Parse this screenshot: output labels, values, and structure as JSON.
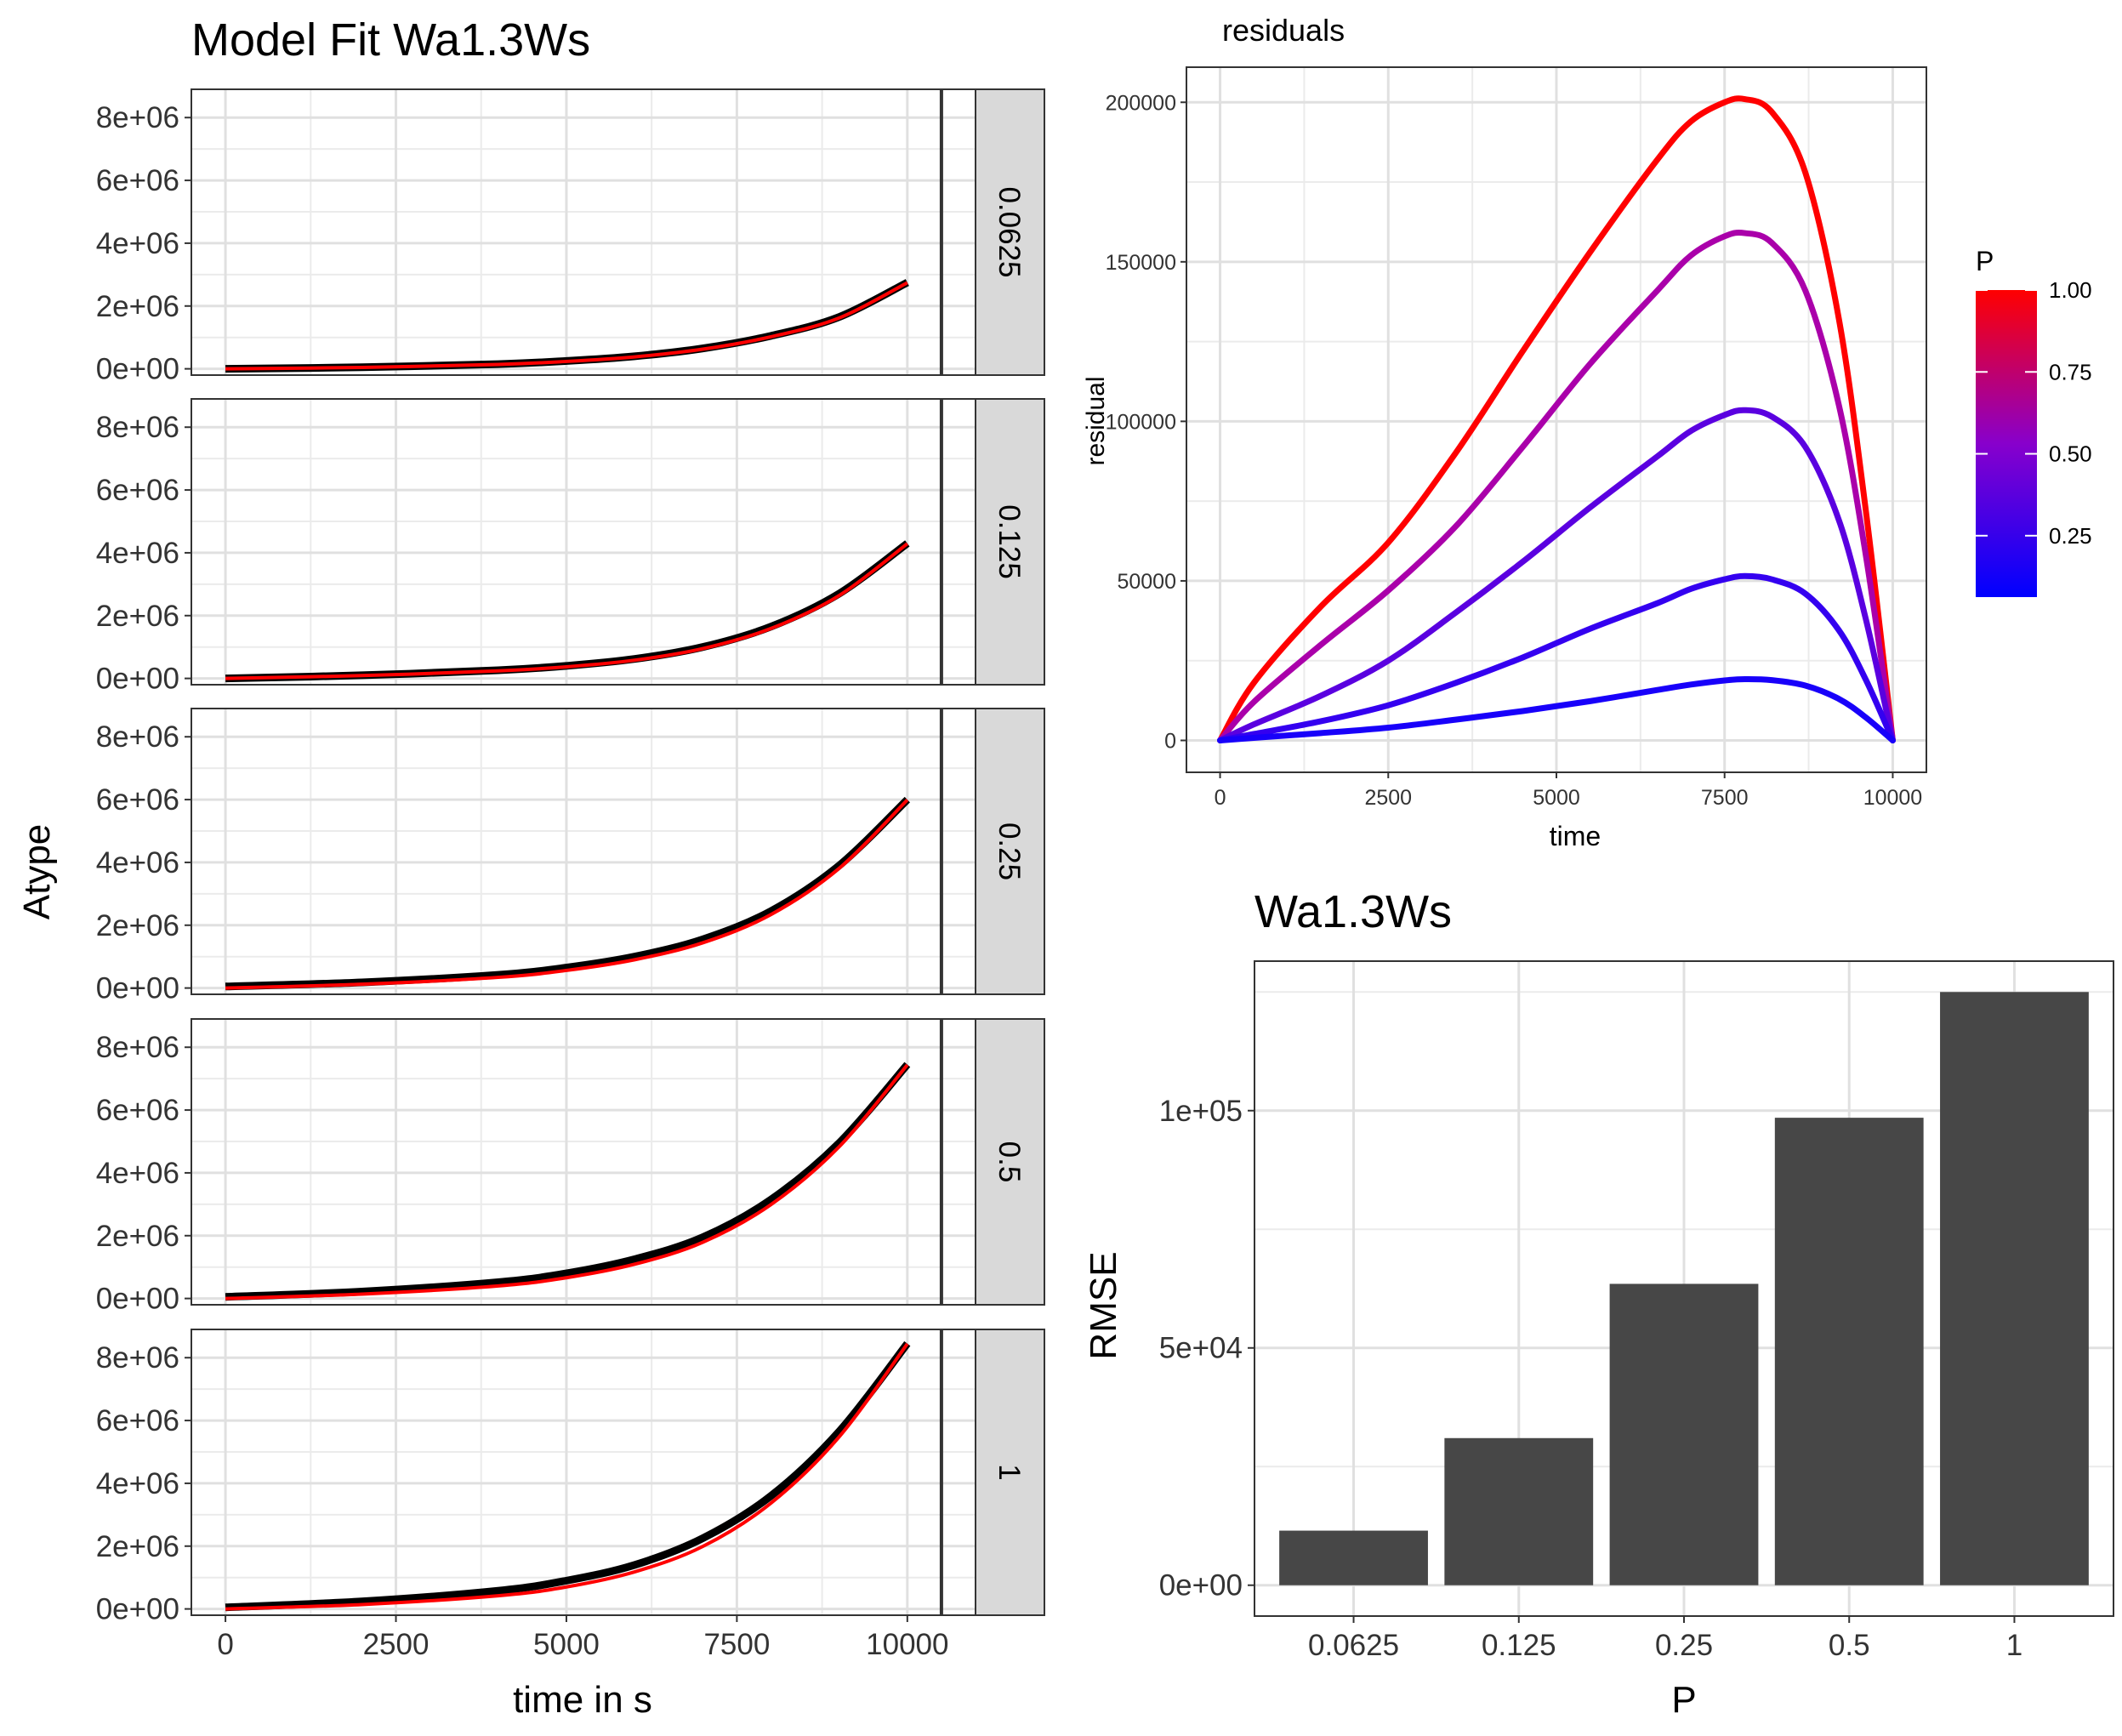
{
  "chart_data": [
    {
      "type": "line",
      "title": "Model Fit Wa1.3Ws",
      "xlabel": "time in s",
      "ylabel": "Atype",
      "xlim": [
        -500,
        11000
      ],
      "ylim": [
        -200000,
        8900000
      ],
      "x_ticks": [
        0,
        2500,
        5000,
        7500,
        10000
      ],
      "y_tick_values": [
        0,
        2000000,
        4000000,
        6000000,
        8000000
      ],
      "y_tick_labels": [
        "0e+00",
        "2e+06",
        "4e+06",
        "6e+06",
        "8e+06"
      ],
      "grid": true,
      "x_range": [
        0,
        10000
      ],
      "facet_note_vline_x": 10500,
      "panels": [
        {
          "facet_label": "0.0625",
          "series": [
            {
              "color": "#000000",
              "x": [
                0,
                2000,
                4000,
                5000,
                6000,
                7000,
                8000,
                9000,
                10000
              ],
              "values": [
                0,
                50000,
                150000,
                250000,
                400000,
                650000,
                1050000,
                1650000,
                2750000
              ]
            },
            {
              "color": "#ff0000",
              "x": [
                0,
                2000,
                4000,
                5000,
                6000,
                7000,
                8000,
                9000,
                10000
              ],
              "values": [
                0,
                45000,
                140000,
                235000,
                380000,
                625000,
                1020000,
                1620000,
                2740000
              ]
            }
          ]
        },
        {
          "facet_label": "0.125",
          "series": [
            {
              "color": "#000000",
              "x": [
                0,
                2000,
                4000,
                5000,
                6000,
                7000,
                8000,
                9000,
                10000
              ],
              "values": [
                0,
                100000,
                260000,
                400000,
                620000,
                1000000,
                1650000,
                2700000,
                4300000
              ]
            },
            {
              "color": "#ff0000",
              "x": [
                0,
                2000,
                4000,
                5000,
                6000,
                7000,
                8000,
                9000,
                10000
              ],
              "values": [
                0,
                90000,
                240000,
                370000,
                580000,
                950000,
                1590000,
                2640000,
                4290000
              ]
            }
          ]
        },
        {
          "facet_label": "0.25",
          "series": [
            {
              "color": "#000000",
              "x": [
                0,
                2000,
                4000,
                5000,
                6000,
                7000,
                8000,
                9000,
                10000
              ],
              "values": [
                50000,
                180000,
                420000,
                650000,
                1000000,
                1550000,
                2450000,
                3900000,
                6000000
              ]
            },
            {
              "color": "#ff0000",
              "x": [
                0,
                2000,
                4000,
                5000,
                6000,
                7000,
                8000,
                9000,
                10000
              ],
              "values": [
                0,
                120000,
                340000,
                560000,
                900000,
                1440000,
                2340000,
                3810000,
                5990000
              ]
            }
          ]
        },
        {
          "facet_label": "0.5",
          "series": [
            {
              "color": "#000000",
              "x": [
                0,
                2000,
                4000,
                5000,
                6000,
                7000,
                8000,
                9000,
                10000
              ],
              "values": [
                50000,
                220000,
                520000,
                800000,
                1250000,
                1950000,
                3150000,
                4950000,
                7450000
              ]
            },
            {
              "color": "#ff0000",
              "x": [
                0,
                2000,
                4000,
                5000,
                6000,
                7000,
                8000,
                9000,
                10000
              ],
              "values": [
                0,
                140000,
                400000,
                660000,
                1090000,
                1790000,
                2990000,
                4830000,
                7440000
              ]
            }
          ]
        },
        {
          "facet_label": "1",
          "series": [
            {
              "color": "#000000",
              "x": [
                0,
                2000,
                4000,
                5000,
                6000,
                7000,
                8000,
                9000,
                10000
              ],
              "values": [
                50000,
                240000,
                580000,
                900000,
                1400000,
                2250000,
                3600000,
                5650000,
                8450000
              ]
            },
            {
              "color": "#ff0000",
              "x": [
                0,
                2000,
                4000,
                5000,
                6000,
                7000,
                8000,
                9000,
                10000
              ],
              "values": [
                0,
                140000,
                420000,
                700000,
                1180000,
                1990000,
                3370000,
                5480000,
                8440000
              ]
            }
          ]
        }
      ]
    },
    {
      "type": "line",
      "title": "residuals",
      "xlabel": "time",
      "ylabel": "residual",
      "xlim": [
        -500,
        10500
      ],
      "ylim": [
        -10000,
        211000
      ],
      "x_ticks": [
        0,
        2500,
        5000,
        7500,
        10000
      ],
      "y_ticks": [
        0,
        50000,
        100000,
        150000,
        200000
      ],
      "grid": true,
      "legend": {
        "title": "P",
        "position": "right",
        "type": "colorbar",
        "low_color": "#0000ff",
        "high_color": "#ff0000",
        "range": [
          0.0625,
          1.0
        ],
        "tick_values": [
          0.25,
          0.5,
          0.75,
          1.0
        ],
        "tick_labels": [
          "0.25",
          "0.50",
          "0.75",
          "1.00"
        ]
      },
      "series": [
        {
          "p": 1.0,
          "color": "#ff0000",
          "x": [
            0,
            500,
            1500,
            2500,
            3500,
            4500,
            5500,
            6500,
            7000,
            7500,
            7800,
            8200,
            8700,
            9200,
            9600,
            10000
          ],
          "values": [
            0,
            18000,
            42000,
            62000,
            90000,
            122000,
            153000,
            182000,
            194000,
            200000,
            201000,
            197000,
            178000,
            132000,
            72000,
            0
          ]
        },
        {
          "p": 0.5,
          "color": "#aa00aa",
          "x": [
            0,
            500,
            1500,
            2500,
            3500,
            4500,
            5500,
            6500,
            7000,
            7500,
            7800,
            8200,
            8700,
            9200,
            9600,
            10000
          ],
          "values": [
            0,
            12000,
            30000,
            47000,
            67000,
            92000,
            118000,
            141000,
            152000,
            158000,
            159000,
            156000,
            141000,
            105000,
            58000,
            0
          ]
        },
        {
          "p": 0.25,
          "color": "#5a00e0",
          "x": [
            0,
            500,
            1500,
            2500,
            3500,
            4500,
            5500,
            6500,
            7000,
            7500,
            7800,
            8200,
            8700,
            9200,
            9600,
            10000
          ],
          "values": [
            0,
            5000,
            14000,
            25000,
            40000,
            56000,
            73000,
            89000,
            97000,
            102000,
            103500,
            101500,
            92000,
            69000,
            38000,
            0
          ]
        },
        {
          "p": 0.125,
          "color": "#3400f0",
          "x": [
            0,
            500,
            1500,
            2500,
            3500,
            4500,
            5500,
            6500,
            7000,
            7500,
            7800,
            8200,
            8700,
            9200,
            9600,
            10000
          ],
          "values": [
            0,
            2000,
            6000,
            11000,
            18000,
            26000,
            35000,
            43000,
            47500,
            50500,
            51500,
            50500,
            46000,
            34500,
            19000,
            0
          ]
        },
        {
          "p": 0.0625,
          "color": "#1800fa",
          "x": [
            0,
            500,
            1500,
            2500,
            3500,
            4500,
            5500,
            6500,
            7000,
            7500,
            7800,
            8200,
            8700,
            9200,
            9600,
            10000
          ],
          "values": [
            0,
            800,
            2300,
            4000,
            6500,
            9200,
            12300,
            15800,
            17500,
            18800,
            19200,
            18900,
            17200,
            13000,
            7200,
            0
          ]
        }
      ]
    },
    {
      "type": "bar",
      "title": "Wa1.3Ws",
      "xlabel": "P",
      "ylabel": "RMSE",
      "categories": [
        "0.0625",
        "0.125",
        "0.25",
        "0.5",
        "1"
      ],
      "values": [
        11500,
        31000,
        63500,
        98500,
        125000
      ],
      "ylim": [
        -6500,
        131500
      ],
      "y_tick_values": [
        0,
        50000,
        100000
      ],
      "y_tick_labels": [
        "0e+00",
        "5e+04",
        "1e+05"
      ],
      "grid": true,
      "bar_color": "#474747"
    }
  ]
}
